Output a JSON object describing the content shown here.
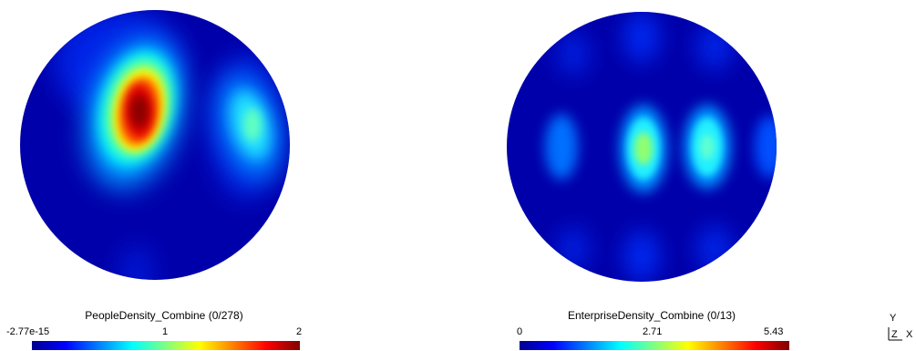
{
  "views": [
    {
      "colorbar": {
        "title": "PeopleDensity_Combine (0/278)",
        "min_label": "-2.77e-15",
        "mid_label": "1",
        "max_label": "2"
      }
    },
    {
      "colorbar": {
        "title": "EnterpriseDensity_Combine (0/13)",
        "min_label": "0",
        "mid_label": "2.71",
        "max_label": "5.43"
      }
    }
  ],
  "orientation_axes": {
    "y": "Y",
    "z": "Z",
    "x": "X"
  },
  "colors": {
    "background": "#ffffff",
    "field_low": "#0000aa",
    "field_high": "#800000"
  }
}
